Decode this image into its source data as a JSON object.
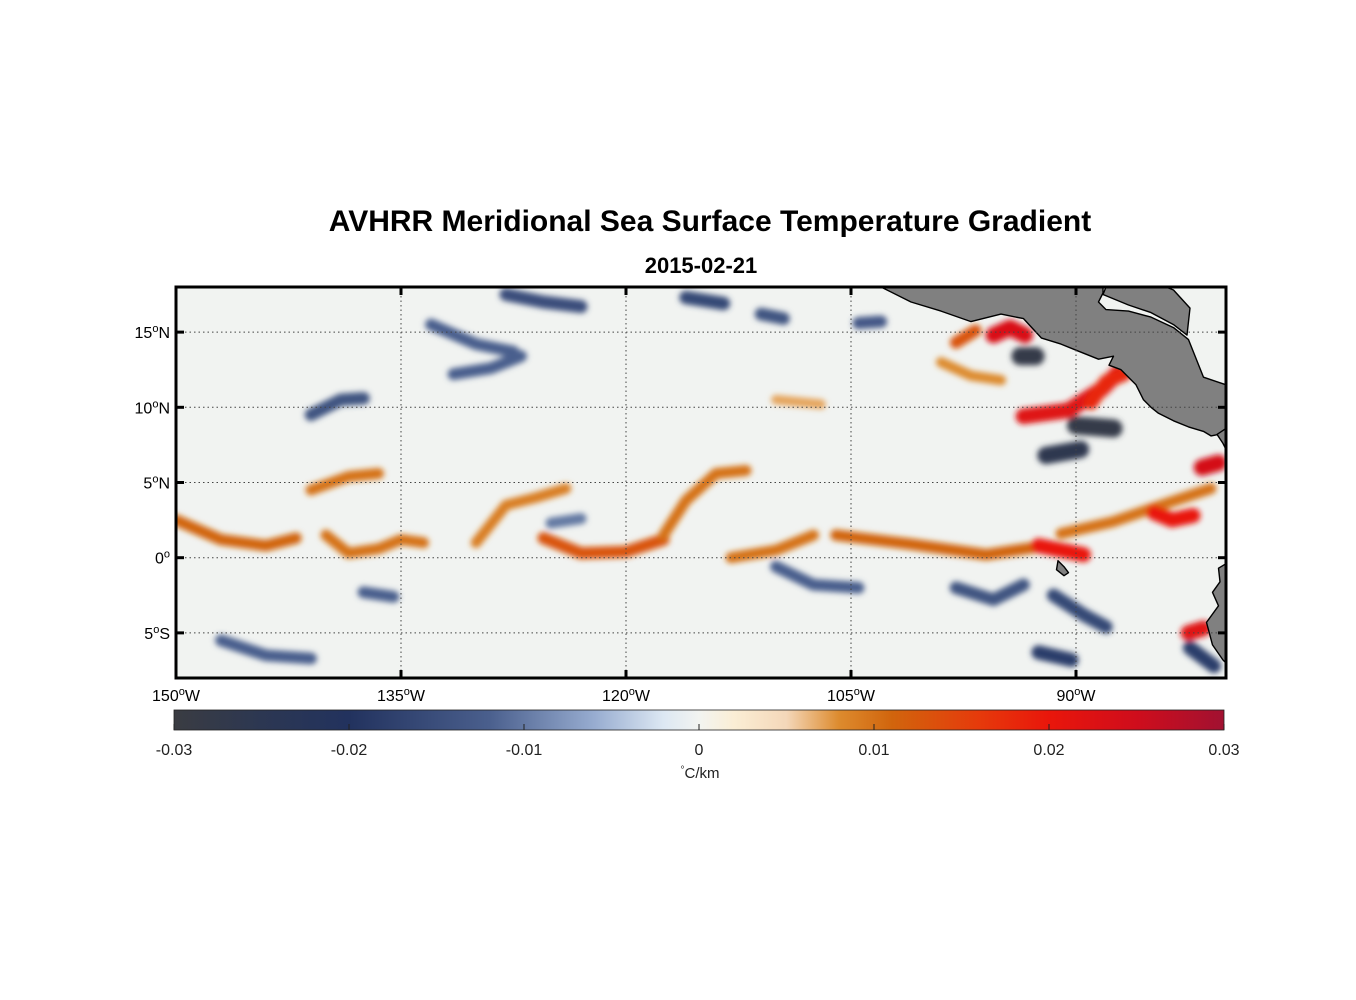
{
  "figure": {
    "title": "AVHRR Meridional Sea Surface Temperature Gradient",
    "subtitle": "2015-02-21"
  },
  "map": {
    "lon_range": [
      -150,
      -80
    ],
    "lat_range": [
      -8,
      18
    ],
    "x_ticks": [
      {
        "value": -150,
        "label": "150",
        "deg": "o",
        "hemi": "W"
      },
      {
        "value": -135,
        "label": "135",
        "deg": "o",
        "hemi": "W"
      },
      {
        "value": -120,
        "label": "120",
        "deg": "o",
        "hemi": "W"
      },
      {
        "value": -105,
        "label": "105",
        "deg": "o",
        "hemi": "W"
      },
      {
        "value": -90,
        "label": "90",
        "deg": "o",
        "hemi": "W"
      }
    ],
    "y_ticks": [
      {
        "value": 15,
        "label": "15",
        "deg": "o",
        "hemi": "N"
      },
      {
        "value": 10,
        "label": "10",
        "deg": "o",
        "hemi": "N"
      },
      {
        "value": 5,
        "label": "5",
        "deg": "o",
        "hemi": "N"
      },
      {
        "value": 0,
        "label": "0",
        "deg": "o",
        "hemi": ""
      },
      {
        "value": -5,
        "label": "5",
        "deg": "o",
        "hemi": "S"
      }
    ],
    "land_color": "#808080",
    "features": [
      {
        "type": "front",
        "polarity": "pos",
        "strength": 0.011,
        "pts": [
          [
            -150,
            2.5
          ],
          [
            -147,
            1.2
          ],
          [
            -144,
            0.8
          ],
          [
            -142,
            1.3
          ]
        ]
      },
      {
        "type": "front",
        "polarity": "pos",
        "strength": 0.01,
        "pts": [
          [
            -141,
            4.5
          ],
          [
            -138.5,
            5.4
          ],
          [
            -136.5,
            5.6
          ]
        ]
      },
      {
        "type": "front",
        "polarity": "pos",
        "strength": 0.01,
        "pts": [
          [
            -140,
            1.5
          ],
          [
            -138.5,
            0.3
          ],
          [
            -136.5,
            0.6
          ],
          [
            -135,
            1.2
          ],
          [
            -133.5,
            1.0
          ]
        ]
      },
      {
        "type": "front",
        "polarity": "pos",
        "strength": 0.009,
        "pts": [
          [
            -130,
            1.0
          ],
          [
            -128,
            3.5
          ],
          [
            -126,
            4.0
          ],
          [
            -124,
            4.6
          ]
        ]
      },
      {
        "type": "front",
        "polarity": "pos",
        "strength": 0.013,
        "pts": [
          [
            -125.5,
            1.3
          ],
          [
            -123,
            0.3
          ],
          [
            -120,
            0.4
          ],
          [
            -117.5,
            1.2
          ]
        ]
      },
      {
        "type": "front",
        "polarity": "pos",
        "strength": 0.01,
        "pts": [
          [
            -117.5,
            1.5
          ],
          [
            -116,
            3.8
          ],
          [
            -114,
            5.6
          ],
          [
            -112,
            5.8
          ]
        ]
      },
      {
        "type": "front",
        "polarity": "pos",
        "strength": 0.01,
        "pts": [
          [
            -113,
            0.0
          ],
          [
            -110,
            0.5
          ],
          [
            -107.5,
            1.5
          ]
        ]
      },
      {
        "type": "front",
        "polarity": "pos",
        "strength": 0.011,
        "pts": [
          [
            -106,
            1.5
          ],
          [
            -101,
            0.9
          ],
          [
            -96,
            0.2
          ],
          [
            -92,
            0.8
          ]
        ]
      },
      {
        "type": "front",
        "polarity": "pos",
        "strength": 0.01,
        "pts": [
          [
            -91,
            1.6
          ],
          [
            -87.5,
            2.4
          ],
          [
            -84,
            3.6
          ],
          [
            -81,
            4.6
          ]
        ]
      },
      {
        "type": "front",
        "polarity": "pos",
        "strength": 0.02,
        "pts": [
          [
            -92.5,
            0.8
          ],
          [
            -91,
            0.5
          ],
          [
            -89.5,
            0.2
          ]
        ]
      },
      {
        "type": "front",
        "polarity": "pos",
        "strength": 0.02,
        "pts": [
          [
            -84.8,
            3.0
          ],
          [
            -83.6,
            2.5
          ],
          [
            -82.2,
            2.8
          ]
        ]
      },
      {
        "type": "front",
        "polarity": "pos",
        "strength": 0.022,
        "pts": [
          [
            -93.5,
            9.4
          ],
          [
            -90.5,
            9.8
          ],
          [
            -88.3,
            11.2
          ],
          [
            -87.2,
            12.3
          ]
        ]
      },
      {
        "type": "front",
        "polarity": "pos",
        "strength": 0.018,
        "pts": [
          [
            -89,
            10.3
          ],
          [
            -88,
            11.7
          ],
          [
            -86.8,
            12.2
          ]
        ]
      },
      {
        "type": "front",
        "polarity": "pos",
        "strength": 0.023,
        "pts": [
          [
            -95.5,
            14.8
          ],
          [
            -94.4,
            15.3
          ],
          [
            -93.4,
            14.8
          ]
        ]
      },
      {
        "type": "front",
        "polarity": "pos",
        "strength": 0.013,
        "pts": [
          [
            -98,
            14.3
          ],
          [
            -96.7,
            15.1
          ]
        ]
      },
      {
        "type": "front",
        "polarity": "pos",
        "strength": 0.024,
        "pts": [
          [
            -81.6,
            6.0
          ],
          [
            -80.5,
            6.3
          ]
        ]
      },
      {
        "type": "front",
        "polarity": "pos",
        "strength": 0.022,
        "pts": [
          [
            -82.5,
            -5.0
          ],
          [
            -81.5,
            -4.7
          ]
        ]
      },
      {
        "type": "front",
        "polarity": "pos",
        "strength": 0.008,
        "pts": [
          [
            -99,
            13.0
          ],
          [
            -97,
            12.1
          ],
          [
            -95,
            11.8
          ]
        ]
      },
      {
        "type": "front",
        "polarity": "pos",
        "strength": 0.007,
        "pts": [
          [
            -110,
            10.5
          ],
          [
            -107,
            10.2
          ]
        ]
      },
      {
        "type": "front",
        "polarity": "neg",
        "strength": 0.012,
        "pts": [
          [
            -131.5,
            12.2
          ],
          [
            -129,
            12.6
          ],
          [
            -127,
            13.4
          ]
        ]
      },
      {
        "type": "front",
        "polarity": "neg",
        "strength": 0.012,
        "pts": [
          [
            -133,
            15.5
          ],
          [
            -130,
            14.2
          ],
          [
            -127.5,
            13.7
          ]
        ]
      },
      {
        "type": "front",
        "polarity": "neg",
        "strength": 0.015,
        "pts": [
          [
            -128,
            17.5
          ],
          [
            -125.5,
            17.0
          ],
          [
            -123,
            16.7
          ]
        ]
      },
      {
        "type": "front",
        "polarity": "neg",
        "strength": 0.016,
        "pts": [
          [
            -116,
            17.3
          ],
          [
            -113.5,
            16.9
          ]
        ]
      },
      {
        "type": "front",
        "polarity": "neg",
        "strength": 0.014,
        "pts": [
          [
            -111,
            16.2
          ],
          [
            -109.5,
            15.9
          ]
        ]
      },
      {
        "type": "front",
        "polarity": "neg",
        "strength": 0.013,
        "pts": [
          [
            -104.5,
            15.6
          ],
          [
            -103,
            15.7
          ]
        ]
      },
      {
        "type": "front",
        "polarity": "neg",
        "strength": 0.028,
        "pts": [
          [
            -93.7,
            13.4
          ],
          [
            -92.7,
            13.4
          ]
        ]
      },
      {
        "type": "front",
        "polarity": "neg",
        "strength": 0.028,
        "pts": [
          [
            -90,
            8.8
          ],
          [
            -87.5,
            8.6
          ]
        ]
      },
      {
        "type": "front",
        "polarity": "neg",
        "strength": 0.026,
        "pts": [
          [
            -92,
            6.8
          ],
          [
            -89.7,
            7.2
          ]
        ]
      },
      {
        "type": "front",
        "polarity": "neg",
        "strength": 0.014,
        "pts": [
          [
            -141,
            9.5
          ],
          [
            -139,
            10.5
          ],
          [
            -137.5,
            10.6
          ]
        ]
      },
      {
        "type": "front",
        "polarity": "neg",
        "strength": 0.012,
        "pts": [
          [
            -110,
            -0.6
          ],
          [
            -107.5,
            -1.8
          ],
          [
            -104.5,
            -2.0
          ]
        ]
      },
      {
        "type": "front",
        "polarity": "neg",
        "strength": 0.014,
        "pts": [
          [
            -98,
            -2.0
          ],
          [
            -95.5,
            -2.8
          ],
          [
            -93.5,
            -1.8
          ]
        ]
      },
      {
        "type": "front",
        "polarity": "neg",
        "strength": 0.016,
        "pts": [
          [
            -91.5,
            -2.5
          ],
          [
            -89.5,
            -3.8
          ],
          [
            -88,
            -4.6
          ]
        ]
      },
      {
        "type": "front",
        "polarity": "neg",
        "strength": 0.018,
        "pts": [
          [
            -92.5,
            -6.3
          ],
          [
            -90.3,
            -6.8
          ]
        ]
      },
      {
        "type": "front",
        "polarity": "neg",
        "strength": 0.018,
        "pts": [
          [
            -82.4,
            -6.0
          ],
          [
            -80.8,
            -7.2
          ]
        ]
      },
      {
        "type": "front",
        "polarity": "neg",
        "strength": 0.012,
        "pts": [
          [
            -147,
            -5.5
          ],
          [
            -144,
            -6.5
          ],
          [
            -141,
            -6.7
          ]
        ]
      },
      {
        "type": "front",
        "polarity": "neg",
        "strength": 0.012,
        "pts": [
          [
            -137.5,
            -2.3
          ],
          [
            -135.5,
            -2.6
          ]
        ]
      },
      {
        "type": "front",
        "polarity": "neg",
        "strength": 0.01,
        "pts": [
          [
            -125,
            2.3
          ],
          [
            -123,
            2.6
          ]
        ]
      }
    ],
    "land": [
      {
        "name": "Mexico",
        "pts": [
          [
            -103,
            18
          ],
          [
            -101,
            17.0
          ],
          [
            -99,
            16.4
          ],
          [
            -97,
            15.7
          ],
          [
            -95,
            16.2
          ],
          [
            -93.5,
            15.9
          ],
          [
            -92.3,
            14.6
          ],
          [
            -91,
            14.2
          ],
          [
            -90,
            13.8
          ],
          [
            -88.5,
            13.2
          ],
          [
            -87.5,
            13.4
          ],
          [
            -87.8,
            12.8
          ],
          [
            -87,
            12.5
          ],
          [
            -86,
            11.5
          ],
          [
            -85.5,
            10.5
          ],
          [
            -85,
            10.0
          ],
          [
            -84.5,
            9.6
          ],
          [
            -83.5,
            9.1
          ],
          [
            -82.5,
            8.7
          ],
          [
            -81.5,
            8.4
          ],
          [
            -81,
            8.1
          ],
          [
            -80,
            8.3
          ],
          [
            -80,
            11.5
          ],
          [
            -81.5,
            12.0
          ],
          [
            -82.5,
            14.5
          ],
          [
            -83.5,
            15.3
          ],
          [
            -85,
            16.0
          ],
          [
            -86.5,
            16.4
          ],
          [
            -88,
            16.5
          ],
          [
            -88.5,
            17.0
          ],
          [
            -88.2,
            17.6
          ],
          [
            -88.2,
            18
          ]
        ]
      },
      {
        "name": "Gulf of Honduras",
        "pts": [
          [
            -88,
            18
          ],
          [
            -88.2,
            17.5
          ],
          [
            -86.5,
            16.8
          ],
          [
            -85,
            16.3
          ],
          [
            -83.5,
            15.5
          ],
          [
            -82.6,
            14.8
          ],
          [
            -82.4,
            16.6
          ],
          [
            -83.5,
            17.8
          ],
          [
            -84,
            18
          ]
        ]
      },
      {
        "name": "Panama",
        "pts": [
          [
            -80.6,
            8.2
          ],
          [
            -80.2,
            7.6
          ],
          [
            -80,
            7.2
          ],
          [
            -80,
            8.6
          ]
        ]
      },
      {
        "name": "Galapagos",
        "pts": [
          [
            -91.2,
            -0.2
          ],
          [
            -90.8,
            -0.6
          ],
          [
            -90.5,
            -1.0
          ],
          [
            -90.8,
            -1.2
          ],
          [
            -91.3,
            -0.8
          ]
        ]
      },
      {
        "name": "South America",
        "pts": [
          [
            -80,
            -0.4
          ],
          [
            -80.5,
            -0.7
          ],
          [
            -80.4,
            -1.6
          ],
          [
            -80.9,
            -2.3
          ],
          [
            -80.5,
            -3.2
          ],
          [
            -81.3,
            -4.3
          ],
          [
            -80.9,
            -5.8
          ],
          [
            -80.2,
            -6.8
          ],
          [
            -80,
            -7.0
          ]
        ]
      }
    ]
  },
  "colorbar": {
    "min": -0.03,
    "max": 0.03,
    "ticks": [
      {
        "value": -0.03,
        "label": "-0.03"
      },
      {
        "value": -0.02,
        "label": "-0.02"
      },
      {
        "value": -0.01,
        "label": "-0.01"
      },
      {
        "value": 0,
        "label": "0"
      },
      {
        "value": 0.01,
        "label": "0.01"
      },
      {
        "value": 0.02,
        "label": "0.02"
      },
      {
        "value": 0.03,
        "label": "0.03"
      }
    ],
    "unit_deg": "°",
    "unit_label": "C/km",
    "stops": [
      {
        "v": -0.03,
        "c": "#3a3c42"
      },
      {
        "v": -0.025,
        "c": "#2c3752"
      },
      {
        "v": -0.02,
        "c": "#22325e"
      },
      {
        "v": -0.012,
        "c": "#4a5f8d"
      },
      {
        "v": -0.006,
        "c": "#97acd0"
      },
      {
        "v": -0.002,
        "c": "#dde8f3"
      },
      {
        "v": 0,
        "c": "#f2f4f1"
      },
      {
        "v": 0.002,
        "c": "#fbeed5"
      },
      {
        "v": 0.005,
        "c": "#f4d7b9"
      },
      {
        "v": 0.008,
        "c": "#dd8b2e"
      },
      {
        "v": 0.011,
        "c": "#d1650d"
      },
      {
        "v": 0.016,
        "c": "#e63a0b"
      },
      {
        "v": 0.02,
        "c": "#e9160b"
      },
      {
        "v": 0.025,
        "c": "#cf0d1c"
      },
      {
        "v": 0.03,
        "c": "#a11131"
      }
    ]
  }
}
